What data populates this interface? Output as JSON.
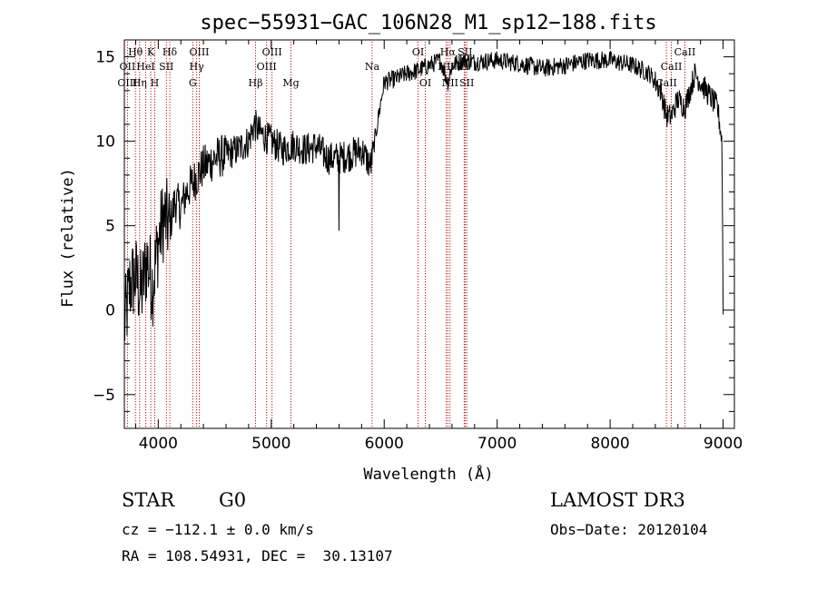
{
  "chart_data": {
    "type": "line",
    "title": "spec−55931−GAC_106N28_M1_sp12−188.fits",
    "xlabel": "Wavelength (Å)",
    "ylabel": "Flux (relative)",
    "xlim": [
      3700,
      9100
    ],
    "ylim": [
      -7,
      16
    ],
    "x_ticks": [
      4000,
      5000,
      6000,
      7000,
      8000,
      9000
    ],
    "y_ticks": [
      -5,
      0,
      5,
      10,
      15
    ],
    "x_tick_labels": [
      "4000",
      "5000",
      "6000",
      "7000",
      "8000",
      "9000"
    ],
    "y_tick_labels": [
      "−5",
      "0",
      "5",
      "10",
      "15"
    ],
    "series": [
      {
        "name": "flux",
        "anchors": [
          [
            3700,
            -1.0
          ],
          [
            3750,
            1.5
          ],
          [
            3800,
            2.0
          ],
          [
            3850,
            1.0
          ],
          [
            3900,
            3.0
          ],
          [
            3950,
            1.5
          ],
          [
            4000,
            4.0
          ],
          [
            4050,
            5.5
          ],
          [
            4100,
            5.0
          ],
          [
            4150,
            6.5
          ],
          [
            4200,
            6.0
          ],
          [
            4250,
            7.0
          ],
          [
            4300,
            7.5
          ],
          [
            4350,
            8.0
          ],
          [
            4400,
            8.5
          ],
          [
            4450,
            8.7
          ],
          [
            4500,
            9.0
          ],
          [
            4600,
            9.2
          ],
          [
            4700,
            9.5
          ],
          [
            4800,
            10.0
          ],
          [
            4850,
            11.0
          ],
          [
            4900,
            10.5
          ],
          [
            5000,
            10.0
          ],
          [
            5100,
            9.5
          ],
          [
            5200,
            9.8
          ],
          [
            5300,
            9.5
          ],
          [
            5400,
            9.7
          ],
          [
            5500,
            9.0
          ],
          [
            5600,
            9.0
          ],
          [
            5700,
            9.2
          ],
          [
            5800,
            9.5
          ],
          [
            5880,
            8.5
          ],
          [
            5950,
            11.5
          ],
          [
            6000,
            13.5
          ],
          [
            6100,
            13.7
          ],
          [
            6200,
            14.0
          ],
          [
            6300,
            14.2
          ],
          [
            6400,
            14.5
          ],
          [
            6500,
            14.8
          ],
          [
            6563,
            13.5
          ],
          [
            6600,
            14.5
          ],
          [
            6700,
            14.8
          ],
          [
            6800,
            14.7
          ],
          [
            7000,
            14.8
          ],
          [
            7200,
            14.6
          ],
          [
            7400,
            14.3
          ],
          [
            7600,
            14.5
          ],
          [
            7800,
            14.8
          ],
          [
            8000,
            14.8
          ],
          [
            8200,
            14.5
          ],
          [
            8350,
            14.0
          ],
          [
            8450,
            13.0
          ],
          [
            8498,
            11.5
          ],
          [
            8542,
            11.5
          ],
          [
            8600,
            12.5
          ],
          [
            8662,
            12.0
          ],
          [
            8750,
            14.0
          ],
          [
            8850,
            13.0
          ],
          [
            8950,
            12.0
          ],
          [
            8990,
            10.0
          ],
          [
            9000,
            0.0
          ]
        ]
      }
    ],
    "line_markers": [
      {
        "label": "Hθ",
        "x": 3798,
        "row": 1
      },
      {
        "label": "OII",
        "x": 3727,
        "row": 2
      },
      {
        "label": "OIII",
        "x": 3727,
        "row": 3
      },
      {
        "label": "K",
        "x": 3934,
        "row": 1
      },
      {
        "label": "HeI",
        "x": 3889,
        "row": 2
      },
      {
        "label": "Hη",
        "x": 3835,
        "row": 3
      },
      {
        "label": "H",
        "x": 3969,
        "row": 3
      },
      {
        "label": "SII",
        "x": 4072,
        "row": 2
      },
      {
        "label": "Hδ",
        "x": 4102,
        "row": 1
      },
      {
        "label": "OIII",
        "x": 4363,
        "row": 1
      },
      {
        "label": "Hγ",
        "x": 4340,
        "row": 2
      },
      {
        "label": "G",
        "x": 4305,
        "row": 3
      },
      {
        "label": "Hβ",
        "x": 4861,
        "row": 3
      },
      {
        "label": "OIII",
        "x": 5007,
        "row": 1
      },
      {
        "label": "OIII",
        "x": 4959,
        "row": 2
      },
      {
        "label": "Mg",
        "x": 5175,
        "row": 3
      },
      {
        "label": "Na",
        "x": 5893,
        "row": 2
      },
      {
        "label": "OI",
        "x": 6300,
        "row": 1
      },
      {
        "label": "OI",
        "x": 6364,
        "row": 3
      },
      {
        "label": "Hα",
        "x": 6563,
        "row": 1
      },
      {
        "label": "NII",
        "x": 6548,
        "row": 2
      },
      {
        "label": "NII",
        "x": 6583,
        "row": 3
      },
      {
        "label": "SII",
        "x": 6716,
        "row": 1
      },
      {
        "label": "Li",
        "x": 6708,
        "row": 2
      },
      {
        "label": "SII",
        "x": 6731,
        "row": 3
      },
      {
        "label": "CaII",
        "x": 8662,
        "row": 1
      },
      {
        "label": "CaII",
        "x": 8542,
        "row": 2
      },
      {
        "label": "CaII",
        "x": 8498,
        "row": 3
      }
    ]
  },
  "info": {
    "object_type": "STAR",
    "subclass": "G0",
    "survey": "LAMOST DR3",
    "cz_text": "cz = −112.1 ± 0.0 km/s",
    "obs_date": "Obs−Date: 20120104",
    "coords": "RA = 108.54931, DEC =  30.13107"
  },
  "colors": {
    "spectrum": "#000000",
    "marker_line": "#b00000",
    "axes": "#000000"
  }
}
